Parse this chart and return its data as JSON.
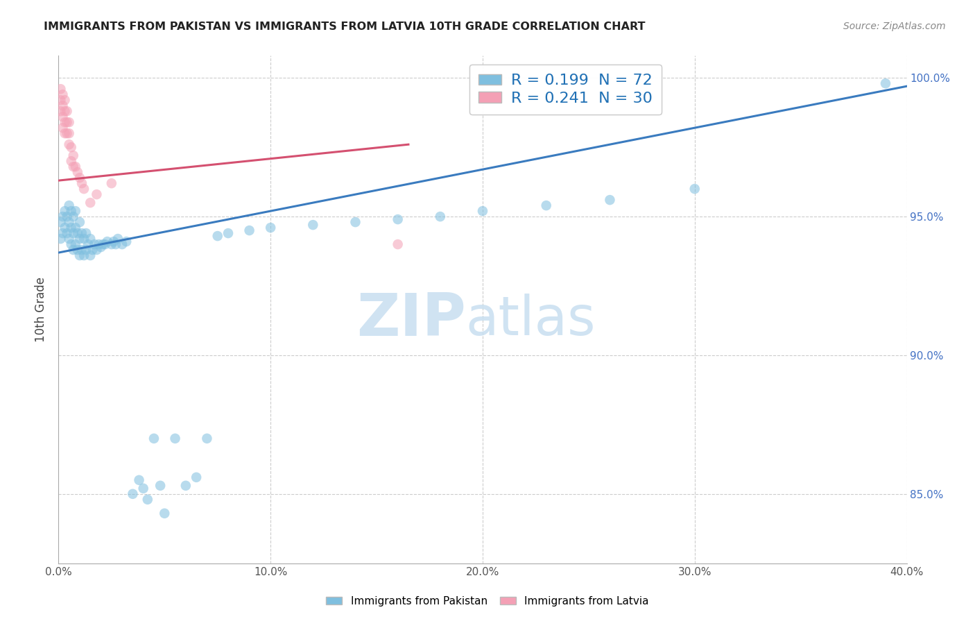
{
  "title": "IMMIGRANTS FROM PAKISTAN VS IMMIGRANTS FROM LATVIA 10TH GRADE CORRELATION CHART",
  "source": "Source: ZipAtlas.com",
  "ylabel": "10th Grade",
  "xlim": [
    0.0,
    0.4
  ],
  "ylim": [
    0.825,
    1.008
  ],
  "xtick_labels": [
    "0.0%",
    "",
    "10.0%",
    "",
    "20.0%",
    "",
    "30.0%",
    "",
    "40.0%"
  ],
  "xtick_values": [
    0.0,
    0.05,
    0.1,
    0.15,
    0.2,
    0.25,
    0.3,
    0.35,
    0.4
  ],
  "xtick_major_labels": [
    "0.0%",
    "10.0%",
    "20.0%",
    "30.0%",
    "40.0%"
  ],
  "xtick_major_values": [
    0.0,
    0.1,
    0.2,
    0.3,
    0.4
  ],
  "ytick_labels": [
    "85.0%",
    "90.0%",
    "95.0%",
    "100.0%"
  ],
  "ytick_values": [
    0.85,
    0.9,
    0.95,
    1.0
  ],
  "blue_color": "#7fbfdf",
  "pink_color": "#f4a0b5",
  "trendline_blue": "#3a7bbf",
  "trendline_pink": "#d45070",
  "R_blue": 0.199,
  "N_blue": 72,
  "R_pink": 0.241,
  "N_pink": 30,
  "legend_label_blue": "Immigrants from Pakistan",
  "legend_label_pink": "Immigrants from Latvia",
  "blue_trend_x": [
    0.0,
    0.4
  ],
  "blue_trend_y": [
    0.937,
    0.997
  ],
  "pink_trend_x": [
    0.0,
    0.165
  ],
  "pink_trend_y": [
    0.963,
    0.976
  ],
  "blue_x": [
    0.001,
    0.001,
    0.002,
    0.002,
    0.003,
    0.003,
    0.004,
    0.004,
    0.005,
    0.005,
    0.005,
    0.006,
    0.006,
    0.006,
    0.007,
    0.007,
    0.007,
    0.008,
    0.008,
    0.008,
    0.009,
    0.009,
    0.01,
    0.01,
    0.01,
    0.011,
    0.011,
    0.012,
    0.012,
    0.013,
    0.013,
    0.014,
    0.015,
    0.015,
    0.016,
    0.017,
    0.018,
    0.019,
    0.02,
    0.021,
    0.022,
    0.023,
    0.025,
    0.026,
    0.027,
    0.028,
    0.03,
    0.032,
    0.035,
    0.038,
    0.04,
    0.042,
    0.045,
    0.048,
    0.05,
    0.055,
    0.06,
    0.065,
    0.07,
    0.075,
    0.08,
    0.09,
    0.1,
    0.12,
    0.14,
    0.16,
    0.18,
    0.2,
    0.23,
    0.26,
    0.3,
    0.39
  ],
  "blue_y": [
    0.942,
    0.948,
    0.944,
    0.95,
    0.946,
    0.952,
    0.944,
    0.95,
    0.942,
    0.948,
    0.954,
    0.94,
    0.946,
    0.952,
    0.938,
    0.944,
    0.95,
    0.94,
    0.946,
    0.952,
    0.938,
    0.944,
    0.936,
    0.942,
    0.948,
    0.938,
    0.944,
    0.936,
    0.942,
    0.938,
    0.944,
    0.94,
    0.936,
    0.942,
    0.938,
    0.94,
    0.938,
    0.94,
    0.939,
    0.94,
    0.94,
    0.941,
    0.94,
    0.941,
    0.94,
    0.942,
    0.94,
    0.941,
    0.85,
    0.855,
    0.852,
    0.848,
    0.87,
    0.853,
    0.843,
    0.87,
    0.853,
    0.856,
    0.87,
    0.943,
    0.944,
    0.945,
    0.946,
    0.947,
    0.948,
    0.949,
    0.95,
    0.952,
    0.954,
    0.956,
    0.96,
    0.998
  ],
  "pink_x": [
    0.001,
    0.001,
    0.001,
    0.002,
    0.002,
    0.002,
    0.002,
    0.003,
    0.003,
    0.003,
    0.003,
    0.004,
    0.004,
    0.004,
    0.005,
    0.005,
    0.005,
    0.006,
    0.006,
    0.007,
    0.007,
    0.008,
    0.009,
    0.01,
    0.011,
    0.012,
    0.015,
    0.018,
    0.025,
    0.16
  ],
  "pink_y": [
    0.996,
    0.992,
    0.988,
    0.994,
    0.99,
    0.986,
    0.982,
    0.992,
    0.988,
    0.984,
    0.98,
    0.988,
    0.984,
    0.98,
    0.984,
    0.98,
    0.976,
    0.975,
    0.97,
    0.972,
    0.968,
    0.968,
    0.966,
    0.964,
    0.962,
    0.96,
    0.955,
    0.958,
    0.962,
    0.94
  ],
  "watermark_zip": "ZIP",
  "watermark_atlas": "atlas",
  "marker_size": 110,
  "alpha": 0.55,
  "grid_color": "#cccccc",
  "grid_linestyle": "--",
  "grid_linewidth": 0.8
}
